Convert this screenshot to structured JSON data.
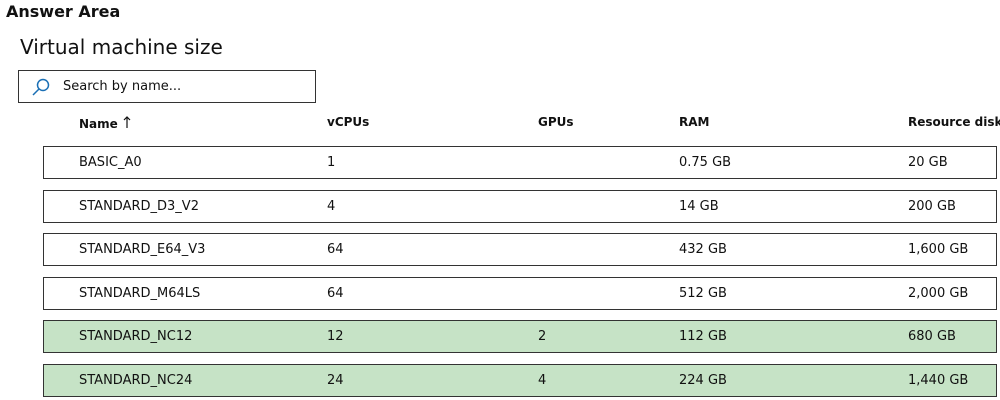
{
  "header": {
    "title": "Answer Area"
  },
  "section": {
    "title": "Virtual machine size"
  },
  "search": {
    "placeholder": "Search by name..."
  },
  "table": {
    "columns": [
      "Name",
      "vCPUs",
      "GPUs",
      "RAM",
      "Resource disk"
    ],
    "rows": [
      {
        "cells": [
          "BASIC_A0",
          "1",
          null,
          "0.75 GB",
          "20 GB"
        ],
        "selected": false
      },
      {
        "cells": [
          "STANDARD_D3_V2",
          "4",
          null,
          "14 GB",
          "200 GB"
        ],
        "selected": false
      },
      {
        "cells": [
          "STANDARD_E64_V3",
          "64",
          null,
          "432 GB",
          "1,600 GB"
        ],
        "selected": false
      },
      {
        "cells": [
          "STANDARD_M64LS",
          "64",
          null,
          "512 GB",
          "2,000 GB"
        ],
        "selected": false
      },
      {
        "cells": [
          "STANDARD_NC12",
          "12",
          "2",
          "112 GB",
          "680 GB"
        ],
        "selected": true
      },
      {
        "cells": [
          "STANDARD_NC24",
          "24",
          "4",
          "224 GB",
          "1,440 GB"
        ],
        "selected": true
      }
    ]
  }
}
